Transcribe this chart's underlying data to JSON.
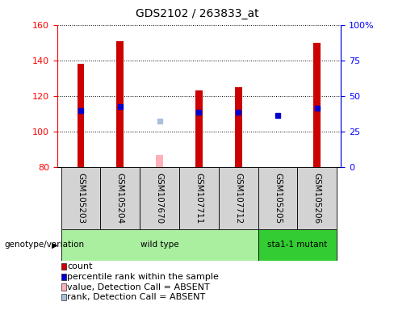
{
  "title": "GDS2102 / 263833_at",
  "samples": [
    "GSM105203",
    "GSM105204",
    "GSM107670",
    "GSM107711",
    "GSM107712",
    "GSM105205",
    "GSM105206"
  ],
  "count_values": [
    138,
    151,
    null,
    123,
    125,
    null,
    150
  ],
  "rank_values": [
    112,
    114,
    null,
    111,
    111,
    109,
    113
  ],
  "absent_value_values": [
    null,
    null,
    87,
    null,
    null,
    null,
    null
  ],
  "absent_rank_values": [
    null,
    null,
    106,
    null,
    null,
    null,
    null
  ],
  "ylim_left": [
    80,
    160
  ],
  "ylim_right": [
    0,
    100
  ],
  "yticks_left": [
    80,
    100,
    120,
    140,
    160
  ],
  "yticks_right": [
    0,
    25,
    50,
    75,
    100
  ],
  "ytick_labels_right": [
    "0",
    "25",
    "50",
    "75",
    "100%"
  ],
  "bar_bottom": 80,
  "count_color": "#CC0000",
  "rank_color": "#0000CC",
  "absent_value_color": "#FFB0B8",
  "absent_rank_color": "#AABFDD",
  "bar_width": 0.18,
  "label_fontsize": 7.5,
  "tick_fontsize": 8,
  "legend_fontsize": 8,
  "plot_bg_color": "#FFFFFF",
  "group_header": "genotype/variation",
  "groups_info": [
    {
      "label": "wild type",
      "start": 0,
      "end": 4,
      "color": "#AAEEA0"
    },
    {
      "label": "sta1-1 mutant",
      "start": 5,
      "end": 6,
      "color": "#33CC33"
    }
  ]
}
